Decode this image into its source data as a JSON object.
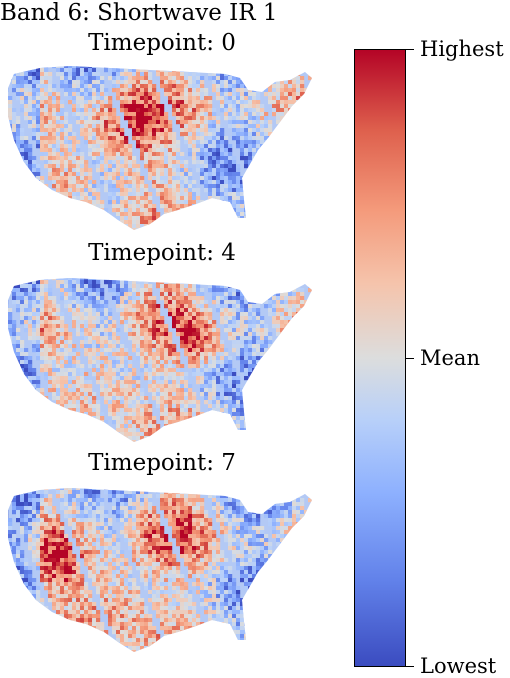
{
  "title": "Band 6: Shortwave IR 1",
  "panels": [
    {
      "label": "Timepoint: 0"
    },
    {
      "label": "Timepoint: 4"
    },
    {
      "label": "Timepoint: 7"
    }
  ],
  "colorbar": {
    "colormap": "coolwarm",
    "colors": [
      "#3b4cc0",
      "#dcdddd",
      "#b40426"
    ],
    "ticks": [
      {
        "label": "Highest",
        "value": 1
      },
      {
        "label": "Mean",
        "value": 0.5
      },
      {
        "label": "Lowest",
        "value": 0
      }
    ]
  }
}
